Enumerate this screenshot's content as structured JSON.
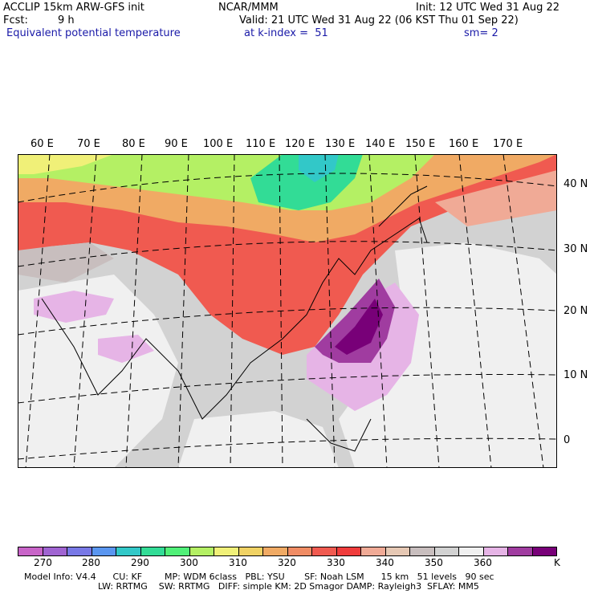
{
  "header": {
    "title": "ACCLIP 15km ARW-GFS init",
    "source": "NCAR/MMM",
    "init": "Init: 12 UTC Wed 31 Aug 22",
    "fcst_label": "Fcst:",
    "fcst_value": "9 h",
    "valid": "Valid: 21 UTC Wed 31 Aug 22 (06 KST Thu 01 Sep 22)",
    "field": "Equivalent potential temperature",
    "level": "at k-index =  51",
    "smooth": "sm= 2"
  },
  "map": {
    "lon_labels": [
      "60 E",
      "70 E",
      "80 E",
      "90 E",
      "100 E",
      "110 E",
      "120 E",
      "130 E",
      "140 E",
      "150 E",
      "160 E",
      "170 E"
    ],
    "lat_labels": [
      "40 N",
      "30 N",
      "20 N",
      "10 N",
      "0"
    ]
  },
  "colorbar": {
    "colors": [
      "#c864c8",
      "#a064d2",
      "#7878e6",
      "#5a96f0",
      "#32c8c8",
      "#32dc96",
      "#50f078",
      "#b4f064",
      "#f0f078",
      "#f0d264",
      "#f0aa64",
      "#f08c64",
      "#f05a50",
      "#f03c3c",
      "#f0aa96",
      "#e6c8b4",
      "#c8bebe",
      "#d2d2d2",
      "#f0f0f0",
      "#e6b4e6",
      "#a03ca0",
      "#780078"
    ],
    "ticks": [
      "270",
      "280",
      "290",
      "300",
      "310",
      "320",
      "330",
      "340",
      "350",
      "360",
      "K"
    ]
  },
  "model_info": {
    "line1": "Model Info: V4.4      CU: KF        MP: WDM 6class   PBL: YSU       SF: Noah LSM      15 km   51 levels   90 sec",
    "line2": "LW: RRTMG    SW: RRTMG   DIFF: simple KM: 2D Smagor DAMP: Rayleigh3  SFLAY: MM5"
  }
}
